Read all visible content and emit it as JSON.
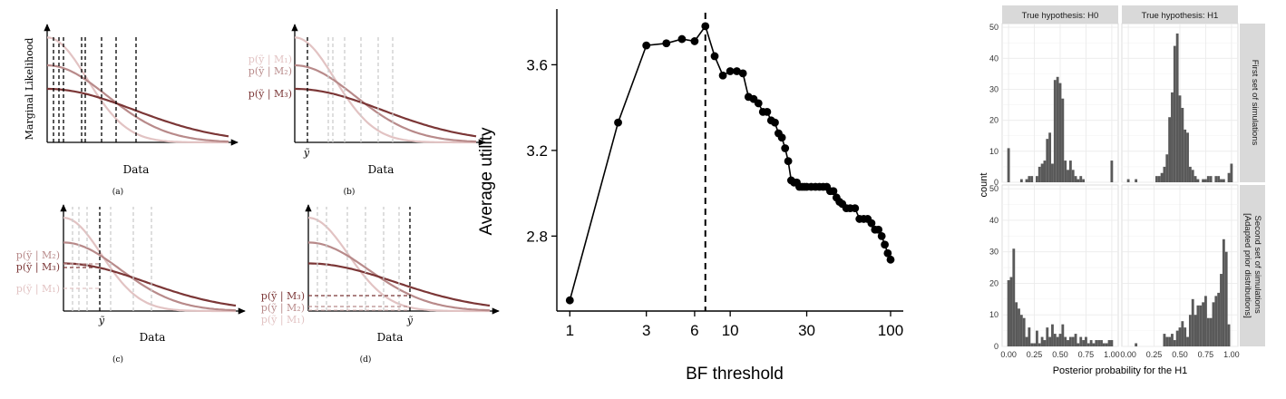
{
  "panel_a": {
    "ylabel": "Marginal Likelihood",
    "xlabel": "Data",
    "caption": "(a)"
  },
  "panel_b": {
    "xlabel": "Data",
    "caption": "(b)",
    "ytilde": "ỹ",
    "labels": [
      "p(ỹ | M₁)",
      "p(ỹ | M₂)",
      "p(ỹ | M₃)"
    ]
  },
  "panel_c": {
    "xlabel": "Data",
    "caption": "(c)",
    "ytilde": "ỹ",
    "labels": [
      "p(ỹ | M₂)",
      "p(ỹ | M₃)",
      "p(ỹ | M₁)"
    ]
  },
  "panel_d": {
    "xlabel": "Data",
    "caption": "(d)",
    "ytilde": "ỹ",
    "labels": [
      "p(ỹ | M₃)",
      "p(ỹ | M₂)",
      "p(ỹ | M₁)"
    ]
  },
  "colors": {
    "m1": "#e2c3c3",
    "m2": "#b88a8a",
    "m3": "#7b3636",
    "line": "#000000",
    "bar": "#595959",
    "panel_bg": "#ebebeb",
    "strip_bg": "#d9d9d9"
  },
  "chart_data": [
    {
      "type": "line",
      "xlabel": "BF threshold",
      "ylabel": "Average utility",
      "xscale": "log",
      "xticks": [
        1,
        3,
        6,
        10,
        30,
        100
      ],
      "xtick_labels": [
        "1",
        "3",
        "6",
        "10",
        "30",
        "100"
      ],
      "yticks": [
        2.8,
        3.2,
        3.6
      ],
      "ytick_labels": [
        "2.8",
        "3.2",
        "3.6"
      ],
      "ylim": [
        2.45,
        3.86
      ],
      "vline_x": 7,
      "x": [
        1,
        2,
        3,
        4,
        5,
        6,
        7,
        8,
        9,
        10,
        11,
        12,
        13,
        14,
        15,
        16,
        17,
        18,
        19,
        20,
        21,
        22,
        23,
        24,
        25,
        26,
        27,
        28,
        29,
        30,
        32,
        34,
        36,
        38,
        40,
        42,
        44,
        46,
        48,
        50,
        53,
        56,
        60,
        64,
        68,
        72,
        76,
        80,
        84,
        88,
        92,
        96,
        100
      ],
      "y": [
        2.5,
        3.33,
        3.69,
        3.7,
        3.72,
        3.71,
        3.78,
        3.64,
        3.55,
        3.57,
        3.57,
        3.56,
        3.45,
        3.44,
        3.42,
        3.38,
        3.38,
        3.34,
        3.33,
        3.28,
        3.26,
        3.21,
        3.15,
        3.06,
        3.05,
        3.05,
        3.03,
        3.03,
        3.03,
        3.03,
        3.03,
        3.03,
        3.03,
        3.03,
        3.03,
        3.01,
        3.01,
        2.98,
        2.96,
        2.95,
        2.93,
        2.93,
        2.93,
        2.88,
        2.88,
        2.88,
        2.86,
        2.83,
        2.83,
        2.8,
        2.76,
        2.72,
        2.69
      ]
    },
    {
      "type": "bar",
      "subtype": "faceted histogram",
      "xlabel": "Posterior probability for the H1",
      "ylabel": "count",
      "xticks": [
        0.0,
        0.25,
        0.5,
        0.75,
        1.0
      ],
      "xtick_labels": [
        "0.00",
        "0.25",
        "0.50",
        "0.75",
        "1.00"
      ],
      "yticks": [
        0,
        10,
        20,
        30,
        40,
        50
      ],
      "ylim": [
        0,
        50
      ],
      "bin_width": 0.025,
      "columns": [
        "True hypothesis: H0",
        "True hypothesis: H1"
      ],
      "rows": [
        "First set of simulations",
        "Second set of simulations [Adapted prior distributions]"
      ],
      "panels": [
        {
          "column": "True hypothesis: H0",
          "row": "First set of simulations",
          "values": [
            11,
            0,
            0,
            0,
            0,
            1,
            0,
            1,
            2,
            2,
            0,
            2,
            5,
            6,
            7,
            14,
            16,
            6,
            33,
            34,
            32,
            27,
            7,
            4,
            7,
            4,
            2,
            1,
            2,
            1,
            0,
            0,
            0,
            0,
            0,
            0,
            0,
            0,
            0,
            0,
            7
          ]
        },
        {
          "column": "True hypothesis: H1",
          "row": "First set of simulations",
          "values": [
            1,
            0,
            0,
            1,
            0,
            0,
            0,
            0,
            0,
            0,
            0,
            2,
            2,
            3,
            5,
            9,
            21,
            29,
            44,
            48,
            28,
            24,
            17,
            16,
            5,
            4,
            2,
            1,
            0,
            1,
            1,
            2,
            2,
            0,
            2,
            2,
            1,
            1,
            0,
            3,
            6
          ]
        },
        {
          "column": "True hypothesis: H0",
          "row": "Second set of simulations [Adapted prior distributions]",
          "values": [
            21,
            22,
            31,
            14,
            12,
            10,
            9,
            3,
            6,
            1,
            1,
            5,
            1,
            3,
            2,
            6,
            3,
            7,
            4,
            3,
            4,
            7,
            3,
            2,
            3,
            3,
            4,
            1,
            3,
            2,
            3,
            1,
            2,
            1,
            2,
            2,
            2,
            1,
            1,
            2,
            2
          ]
        },
        {
          "column": "True hypothesis: H1",
          "row": "Second set of simulations [Adapted prior distributions]",
          "values": [
            0,
            0,
            0,
            1,
            0,
            0,
            0,
            0,
            0,
            0,
            0,
            0,
            0,
            0,
            4,
            3,
            3,
            4,
            2,
            5,
            6,
            8,
            6,
            3,
            10,
            15,
            10,
            13,
            13,
            14,
            16,
            9,
            9,
            14,
            16,
            17,
            23,
            34,
            30,
            7,
            0
          ]
        }
      ]
    }
  ]
}
